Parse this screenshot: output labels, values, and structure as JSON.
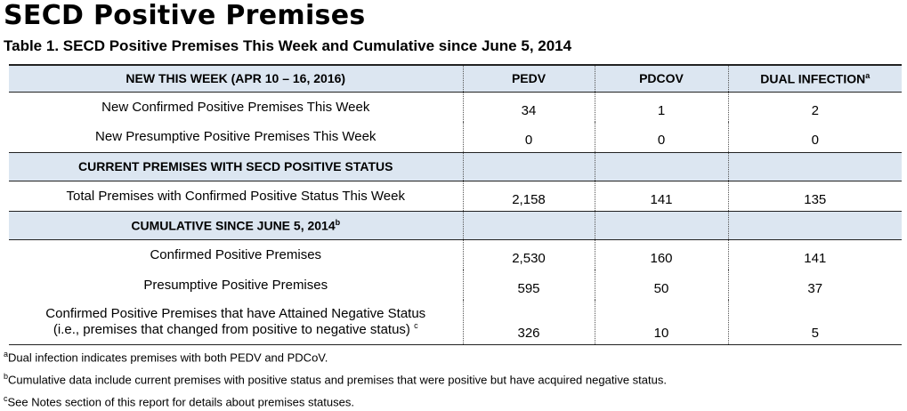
{
  "title": "SECD Positive Premises",
  "caption": "Table 1. SECD Positive Premises This Week and Cumulative since June 5, 2014",
  "table": {
    "header": {
      "cells": [
        "NEW THIS WEEK  (APR 10 – 16, 2016)",
        "PEDV",
        "PDCOV",
        "DUAL INFECTION"
      ],
      "sup": "a"
    },
    "rows": [
      {
        "label": [
          "New Confirmed Positive Premises This Week"
        ],
        "cells": [
          "34",
          "1",
          "2"
        ]
      },
      {
        "label": [
          "New Presumptive Positive Premises This Week"
        ],
        "cells": [
          "0",
          "0",
          "0"
        ]
      },
      {
        "section": "CURRENT PREMISES WITH SECD POSITIVE STATUS"
      },
      {
        "label": [
          "Total Premises with Confirmed Positive Status This Week"
        ],
        "cells": [
          "2,158",
          "141",
          "135"
        ]
      },
      {
        "section": "CUMULATIVE SINCE JUNE 5, 2014",
        "sup": "b"
      },
      {
        "label": [
          "Confirmed Positive Premises"
        ],
        "cells": [
          "2,530",
          "160",
          "141"
        ]
      },
      {
        "label": [
          "Presumptive Positive Premises"
        ],
        "cells": [
          "595",
          "50",
          "37"
        ]
      },
      {
        "label": [
          "Confirmed Positive Premises that have Attained Negative Status",
          "(i.e., premises that changed from positive to negative status)"
        ],
        "sup": "c",
        "cells": [
          "326",
          "10",
          "5"
        ]
      }
    ]
  },
  "footnotes": [
    {
      "mark": "a",
      "text": "Dual infection indicates premises with both PEDV and PDCoV."
    },
    {
      "mark": "b",
      "text": "Cumulative data include current premises with positive status and premises that were positive but have acquired negative status."
    },
    {
      "mark": "c",
      "text": "See Notes section of this report for details about premises statuses."
    }
  ]
}
